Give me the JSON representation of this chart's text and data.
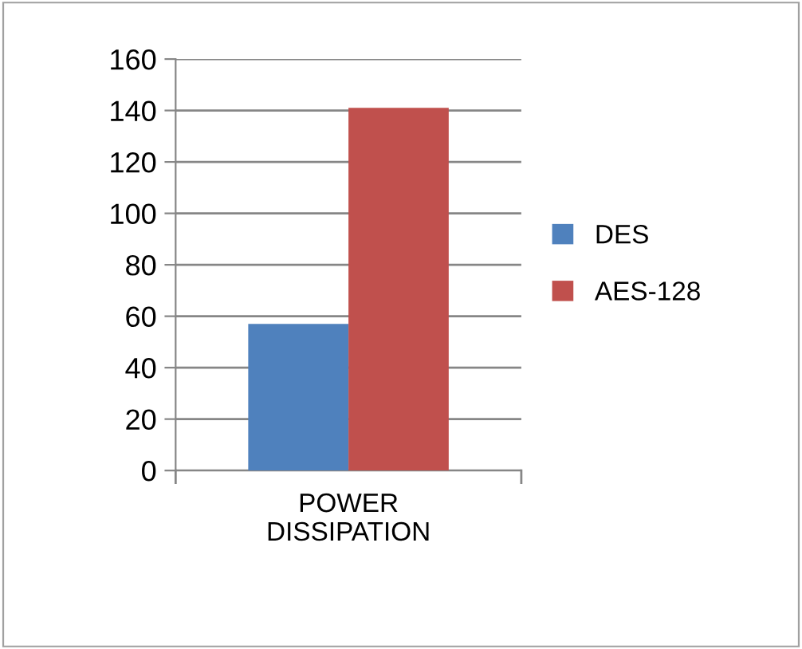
{
  "chart_data": {
    "type": "bar",
    "categories": [
      "POWER\nDISSIPATION"
    ],
    "series": [
      {
        "name": "DES",
        "color": "#4f81bd",
        "values": [
          57
        ]
      },
      {
        "name": "AES-128",
        "color": "#c0504d",
        "values": [
          141
        ]
      }
    ],
    "ylim": [
      0,
      160
    ],
    "yticks": [
      0,
      20,
      40,
      60,
      80,
      100,
      120,
      140,
      160
    ],
    "grid": "y",
    "legend": "right"
  }
}
